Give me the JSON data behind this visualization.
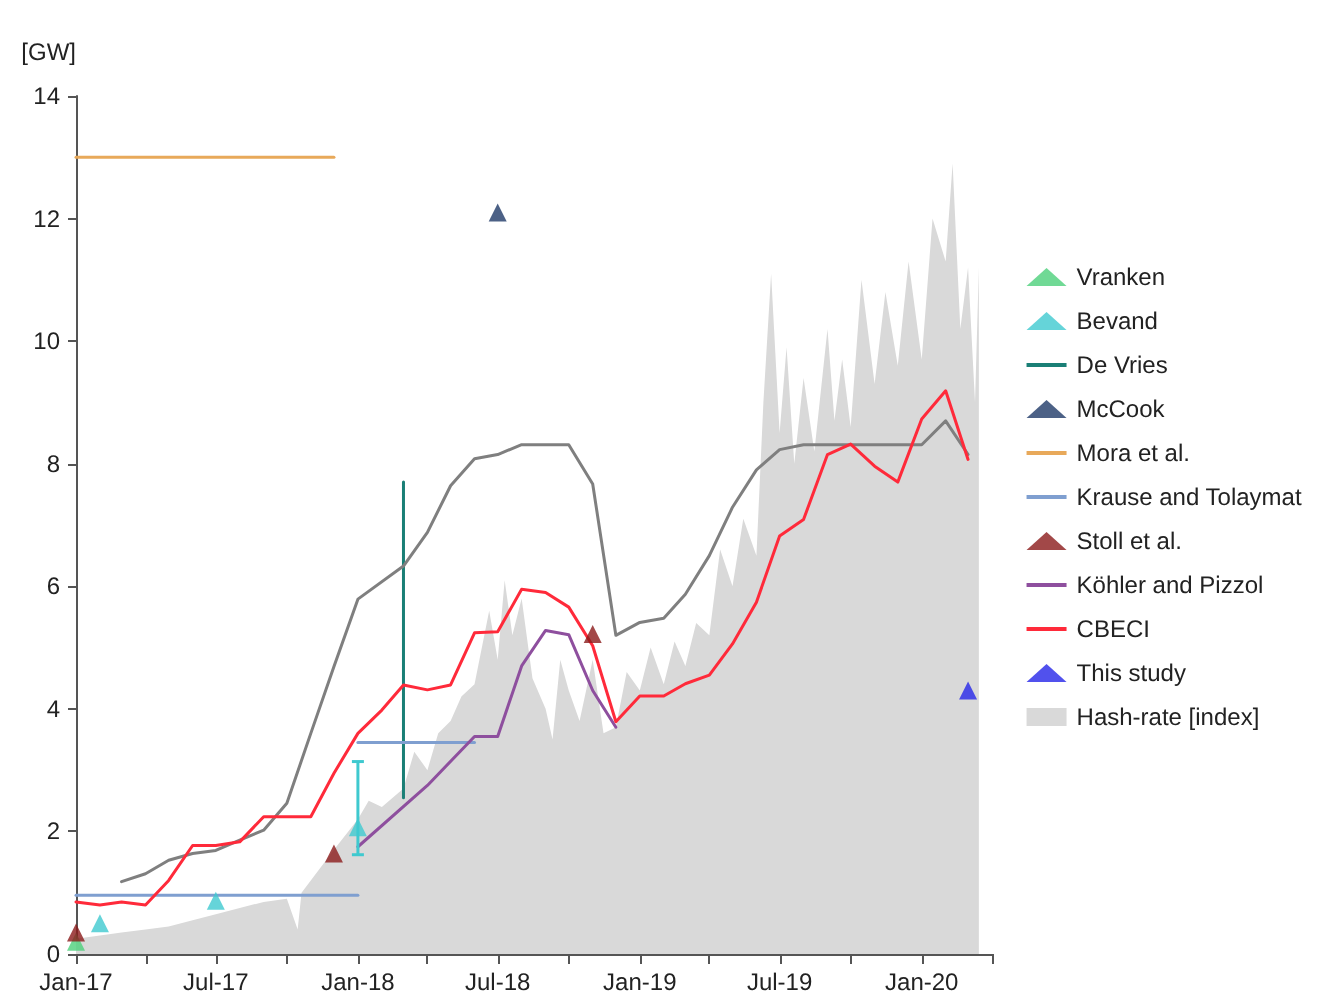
{
  "chart_data": {
    "type": "line",
    "ylabel": "[GW]",
    "legend": "right",
    "grid": false,
    "xlim": [
      "2017-01",
      "2020-04"
    ],
    "xticks": [
      {
        "value": "2017-01",
        "label": "Jan-17"
      },
      {
        "value": "2017-04",
        "label": null
      },
      {
        "value": "2017-07",
        "label": "Jul-17"
      },
      {
        "value": "2017-10",
        "label": null
      },
      {
        "value": "2018-01",
        "label": "Jan-18"
      },
      {
        "value": "2018-04",
        "label": null
      },
      {
        "value": "2018-07",
        "label": "Jul-18"
      },
      {
        "value": "2018-10",
        "label": null
      },
      {
        "value": "2019-01",
        "label": "Jan-19"
      },
      {
        "value": "2019-04",
        "label": null
      },
      {
        "value": "2019-07",
        "label": "Jul-19"
      },
      {
        "value": "2019-10",
        "label": null
      },
      {
        "value": "2020-01",
        "label": "Jan-20"
      },
      {
        "value": "2020-04",
        "label": null
      }
    ],
    "ylim": [
      0,
      14
    ],
    "yticks": [
      0,
      2,
      4,
      6,
      8,
      10,
      12,
      14
    ],
    "series": [
      {
        "name": "Vranken",
        "type": "scatter",
        "marker": "triangle",
        "color": "#4ccf7a",
        "x": [
          "2017-01"
        ],
        "values": [
          0.2
        ]
      },
      {
        "name": "Bevand",
        "type": "scatter",
        "marker": "triangle",
        "color": "#3fc9cf",
        "x": [
          "2017-02",
          "2017-07",
          "2018-01"
        ],
        "values": [
          0.5,
          0.87,
          2.07
        ],
        "errors": [
          null,
          null,
          [
            1.62,
            3.14
          ]
        ]
      },
      {
        "name": "De Vries",
        "type": "line",
        "marker": "none",
        "color": "#1a7f76",
        "x": [
          "2018-03",
          "2018-03"
        ],
        "values": [
          2.55,
          7.7
        ]
      },
      {
        "name": "McCook",
        "type": "scatter",
        "marker": "triangle",
        "color": "#1f3a68",
        "x": [
          "2018-07"
        ],
        "values": [
          12.1
        ]
      },
      {
        "name": "Mora et al.",
        "type": "line",
        "marker": "none",
        "color": "#e8a95a",
        "x": [
          "2017-01",
          "2017-12"
        ],
        "values": [
          13,
          13
        ]
      },
      {
        "name": "Krause and Tolaymat",
        "marker": "none",
        "color": "#7f9fd0",
        "x": [
          "2017-01",
          "2018-01"
        ],
        "values": [
          0.96,
          0.96
        ]
      },
      {
        "marker": "none",
        "color": "#7f9fd0",
        "x": [
          "2018-01",
          "2018-06"
        ],
        "values": [
          3.45,
          3.45
        ]
      },
      {
        "name": "Stoll et al.",
        "type": "scatter",
        "marker": "triangle",
        "color": "#8b1a1a",
        "x": [
          "2017-01",
          "2017-12",
          "2018-11"
        ],
        "values": [
          0.35,
          1.64,
          5.22
        ]
      },
      {
        "name": "Köhler and Pizzol",
        "type": "line",
        "marker": "none",
        "color": "#8e4f9e",
        "x": [
          "2018-01",
          "2018-04",
          "2018-06",
          "2018-07",
          "2018-08",
          "2018-09",
          "2018-10",
          "2018-11",
          "2018-12"
        ],
        "values": [
          1.75,
          2.75,
          3.55,
          3.55,
          4.7,
          5.28,
          5.21,
          4.3,
          3.7
        ]
      },
      {
        "type": "line",
        "marker": "none",
        "color": "#7f7f7f",
        "x": [
          "2017-03",
          "2017-04",
          "2017-05",
          "2017-06",
          "2017-07",
          "2017-08",
          "2017-09",
          "2017-10",
          "2017-11",
          "2017-12",
          "2018-01",
          "2018-03",
          "2018-04",
          "2018-05",
          "2018-06",
          "2018-07",
          "2018-08",
          "2018-09",
          "2018-10",
          "2018-11",
          "2018-12",
          "2019-01",
          "2019-02",
          "2019-03",
          "2019-04",
          "2019-05",
          "2019-06",
          "2019-07",
          "2019-08",
          "2019-09",
          "2019-10",
          "2019-11",
          "2019-12",
          "2020-01",
          "2020-02",
          "2020-03"
        ],
        "values": [
          1.18,
          1.31,
          1.53,
          1.64,
          1.69,
          1.86,
          2.02,
          2.46,
          3.6,
          4.69,
          5.79,
          6.33,
          6.88,
          7.64,
          8.08,
          8.15,
          8.31,
          8.31,
          8.31,
          7.67,
          5.2,
          5.41,
          5.48,
          5.87,
          6.5,
          7.29,
          7.9,
          8.23,
          8.31,
          8.31,
          8.31,
          8.31,
          8.31,
          8.31,
          8.7,
          8.15
        ]
      },
      {
        "name": "CBECI",
        "type": "line",
        "marker": "none",
        "color": "#ff2a3a",
        "x": [
          "2017-01",
          "2017-02",
          "2017-03",
          "2017-04",
          "2017-05",
          "2017-06",
          "2017-07",
          "2017-08",
          "2017-09",
          "2017-10",
          "2017-11",
          "2017-12",
          "2018-01",
          "2018-02",
          "2018-03",
          "2018-04",
          "2018-05",
          "2018-06",
          "2018-07",
          "2018-08",
          "2018-09",
          "2018-10",
          "2018-11",
          "2018-12",
          "2019-01",
          "2019-02",
          "2019-03",
          "2019-04",
          "2019-05",
          "2019-06",
          "2019-07",
          "2019-08",
          "2019-09",
          "2019-10",
          "2019-11",
          "2019-12",
          "2020-01",
          "2020-02",
          "2020-03"
        ],
        "values": [
          0.85,
          0.8,
          0.85,
          0.8,
          1.2,
          1.77,
          1.77,
          1.83,
          2.24,
          2.24,
          2.24,
          2.95,
          3.6,
          3.98,
          4.39,
          4.31,
          4.39,
          5.24,
          5.26,
          5.95,
          5.9,
          5.66,
          5.03,
          3.79,
          4.21,
          4.21,
          4.41,
          4.55,
          5.06,
          5.74,
          6.82,
          7.09,
          8.15,
          8.32,
          7.96,
          7.7,
          8.73,
          9.19,
          8.07
        ]
      },
      {
        "name": "This study",
        "type": "scatter",
        "marker": "triangle",
        "color": "#2626e8",
        "x": [
          "2020-03"
        ],
        "values": [
          4.3
        ]
      },
      {
        "name": "Hash-rate [index]",
        "type": "area",
        "marker": "none",
        "color": "#d9d9d9",
        "x": [
          "2017-01-01",
          "2017-02-01",
          "2017-03-01",
          "2017-04-01",
          "2017-05-01",
          "2017-06-01",
          "2017-07-01",
          "2017-08-01",
          "2017-09-01",
          "2017-10-01",
          "2017-10-15",
          "2017-10-20",
          "2017-11-01",
          "2017-12-01",
          "2018-01-01",
          "2018-01-15",
          "2018-02-01",
          "2018-03-01",
          "2018-03-15",
          "2018-04-01",
          "2018-04-15",
          "2018-05-01",
          "2018-05-15",
          "2018-06-01",
          "2018-06-20",
          "2018-07-01",
          "2018-07-10",
          "2018-07-20",
          "2018-08-01",
          "2018-08-15",
          "2018-09-01",
          "2018-09-10",
          "2018-09-20",
          "2018-10-01",
          "2018-10-15",
          "2018-11-01",
          "2018-11-15",
          "2018-12-01",
          "2018-12-15",
          "2019-01-01",
          "2019-01-15",
          "2019-02-01",
          "2019-02-15",
          "2019-03-01",
          "2019-03-15",
          "2019-04-01",
          "2019-04-15",
          "2019-05-01",
          "2019-05-15",
          "2019-06-01",
          "2019-06-10",
          "2019-06-20",
          "2019-07-01",
          "2019-07-10",
          "2019-07-20",
          "2019-08-01",
          "2019-08-15",
          "2019-09-01",
          "2019-09-10",
          "2019-09-20",
          "2019-10-01",
          "2019-10-15",
          "2019-11-01",
          "2019-11-15",
          "2019-12-01",
          "2019-12-15",
          "2020-01-01",
          "2020-01-15",
          "2020-02-01",
          "2020-02-10",
          "2020-02-20",
          "2020-03-01",
          "2020-03-10",
          "2020-03-15"
        ],
        "values": [
          0.25,
          0.3,
          0.35,
          0.4,
          0.45,
          0.55,
          0.65,
          0.75,
          0.85,
          0.9,
          0.4,
          1.0,
          1.2,
          1.7,
          2.2,
          2.5,
          2.4,
          2.7,
          3.3,
          3.0,
          3.6,
          3.8,
          4.2,
          4.4,
          5.6,
          4.8,
          6.1,
          5.2,
          5.8,
          4.5,
          4.0,
          3.5,
          4.8,
          4.3,
          3.8,
          4.8,
          3.6,
          3.7,
          4.6,
          4.3,
          5.0,
          4.4,
          5.1,
          4.7,
          5.4,
          5.2,
          6.6,
          6.0,
          7.1,
          6.5,
          9.0,
          11.1,
          8.5,
          9.9,
          8.0,
          9.4,
          8.2,
          10.2,
          8.7,
          9.7,
          8.6,
          11.0,
          9.3,
          10.8,
          9.6,
          11.3,
          9.7,
          12.0,
          11.3,
          12.9,
          10.2,
          11.2,
          9.0,
          11.2
        ]
      }
    ]
  }
}
